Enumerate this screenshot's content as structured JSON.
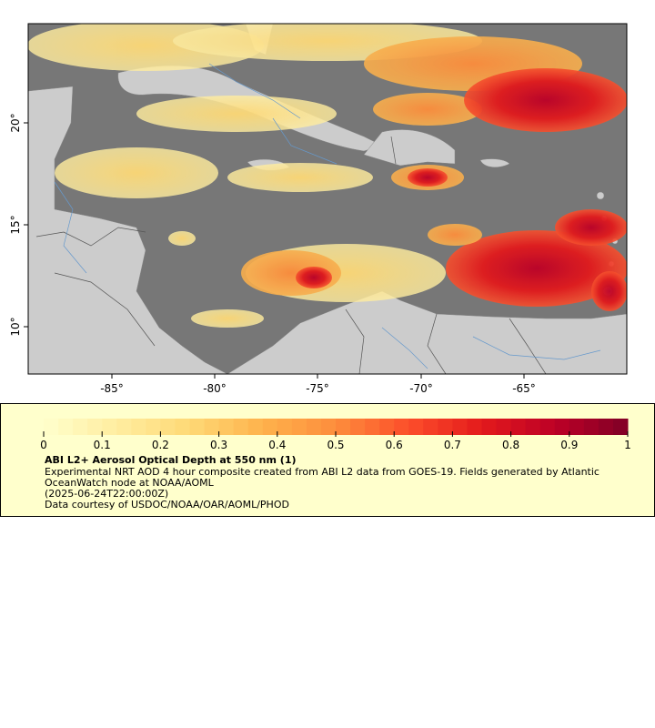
{
  "map": {
    "lat_ticks": [
      "20°",
      "15°",
      "10°"
    ],
    "lon_ticks": [
      "-85°",
      "-80°",
      "-75°",
      "-70°",
      "-65°"
    ],
    "colors": {
      "ocean": "#777777",
      "land": "#cccccc",
      "border": "#555555",
      "river": "#6699cc"
    }
  },
  "legend": {
    "ticks": [
      "0",
      "0.1",
      "0.2",
      "0.3",
      "0.4",
      "0.5",
      "0.6",
      "0.7",
      "0.8",
      "0.9",
      "1"
    ],
    "title": "ABI L2+ Aerosol Optical Depth at 550 nm (1)",
    "description": "Experimental NRT AOD 4 hour composite created from ABI L2 data from GOES-19. Fields generated by Atlantic OceanWatch node at NOAA/AOML",
    "timestamp": "(2025-06-24T22:00:00Z)",
    "credit": "Data courtesy of USDOC/NOAA/OAR/AOML/PHOD",
    "colormap": [
      "#ffffcc",
      "#ffeda0",
      "#fed976",
      "#feb24c",
      "#fd8d3c",
      "#fc4e2a",
      "#e31a1c",
      "#bd0026",
      "#800026"
    ],
    "range": [
      0,
      1
    ]
  }
}
